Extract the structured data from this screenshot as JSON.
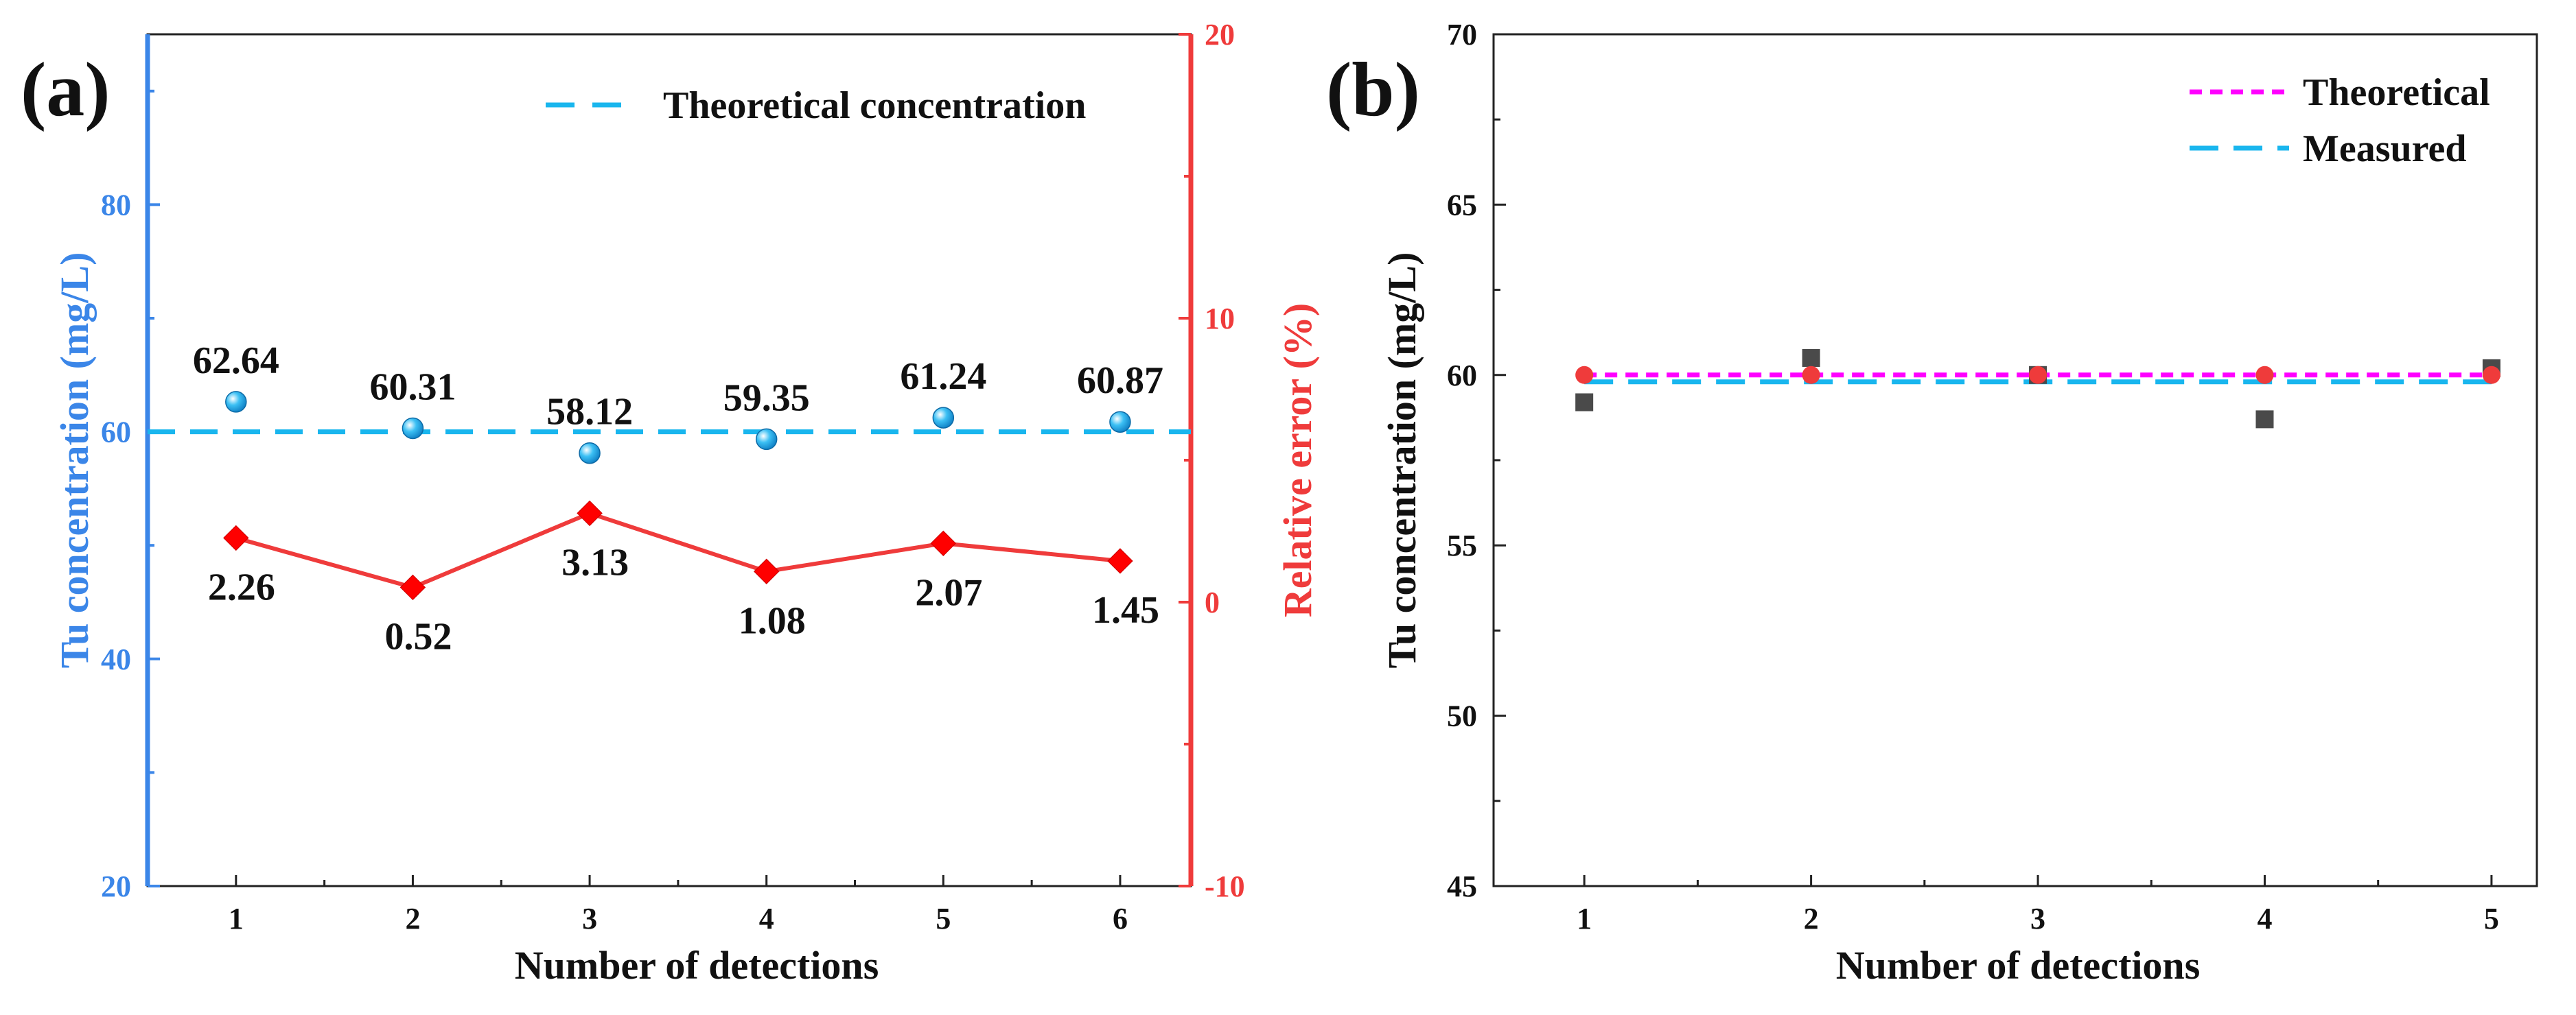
{
  "panels": {
    "a": {
      "label": "(a)",
      "xlabel": "Number of detections",
      "ylabel_left": "Tu concentration (mg/L)",
      "ylabel_right": "Relative error (%)",
      "legend": {
        "theoretical": "Theoretical concentration"
      },
      "colors": {
        "left_axis": "#3b86e8",
        "right_axis": "#ef3b3b",
        "dashed": "#19b6ee",
        "error": "#ef3b3b",
        "marker": "#1aa9ec"
      }
    },
    "b": {
      "label": "(b)",
      "xlabel": "Number of detections",
      "ylabel": "Tu concentration (mg/L)",
      "legend": {
        "theoretical": "Theoretical",
        "measured": "Measured"
      },
      "colors": {
        "theoretical": "#ff00ff",
        "measured": "#19b6ee",
        "square": "#4a4a4a",
        "circle": "#ef3b3b"
      }
    }
  },
  "chart_data": [
    {
      "id": "a",
      "type": "scatter",
      "title": "",
      "xlabel": "Number of detections",
      "ylabel": "Tu concentration (mg/L)",
      "y2label": "Relative error (%)",
      "xlim": [
        0.5,
        6.4
      ],
      "ylim": [
        20,
        95
      ],
      "y2lim": [
        -10,
        20
      ],
      "x": [
        1,
        2,
        3,
        4,
        5,
        6
      ],
      "x_ticks": [
        1,
        2,
        3,
        4,
        5,
        6
      ],
      "y_ticks": [
        20,
        40,
        60,
        80
      ],
      "y2_ticks": [
        -10,
        0,
        10,
        20
      ],
      "legend_position": "top-right",
      "reference_line": {
        "name": "Theoretical concentration",
        "y": 60
      },
      "series": [
        {
          "name": "Tu concentration",
          "axis": "left",
          "values": [
            62.64,
            60.31,
            58.12,
            59.35,
            61.24,
            60.87
          ],
          "labels": [
            "62.64",
            "60.31",
            "58.12",
            "59.35",
            "61.24",
            "60.87"
          ]
        },
        {
          "name": "Relative error",
          "axis": "right",
          "values": [
            2.26,
            0.52,
            3.13,
            1.08,
            2.07,
            1.45
          ],
          "labels": [
            "2.26",
            "0.52",
            "3.13",
            "1.08",
            "2.07",
            "1.45"
          ]
        }
      ]
    },
    {
      "id": "b",
      "type": "scatter",
      "title": "",
      "xlabel": "Number of detections",
      "ylabel": "Tu concentration (mg/L)",
      "xlim": [
        0.6,
        5.2
      ],
      "ylim": [
        45,
        70
      ],
      "x": [
        1,
        2,
        3,
        4,
        5
      ],
      "x_ticks": [
        1,
        2,
        3,
        4,
        5
      ],
      "y_ticks": [
        45,
        50,
        55,
        60,
        65,
        70
      ],
      "legend_position": "top-right",
      "series": [
        {
          "name": "Theoretical",
          "kind": "line",
          "values": [
            60,
            60,
            60,
            60,
            60
          ]
        },
        {
          "name": "Measured",
          "kind": "line",
          "values": [
            59.8,
            59.8,
            59.8,
            59.8,
            59.8
          ]
        },
        {
          "name": "Measured points",
          "kind": "square",
          "values": [
            59.2,
            60.5,
            60.0,
            58.7,
            60.2
          ]
        },
        {
          "name": "Theoretical points",
          "kind": "circle",
          "values": [
            60,
            60,
            60,
            60,
            60
          ]
        }
      ]
    }
  ]
}
